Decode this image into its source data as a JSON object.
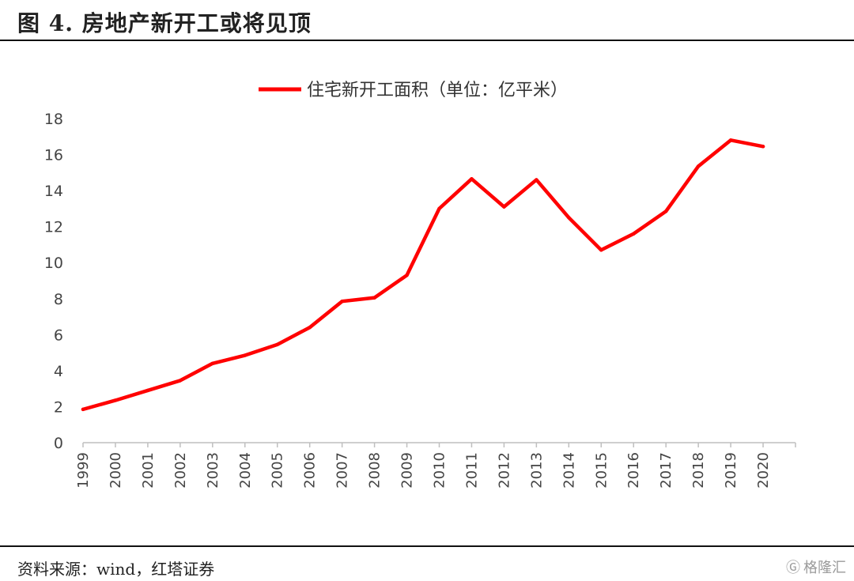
{
  "header": {
    "title": "图 4. 房地产新开工或将见顶"
  },
  "footer": {
    "source": "资料来源：wind，红塔证券",
    "watermark": "格隆汇"
  },
  "chart_data": {
    "type": "line",
    "legend_position": "top-center",
    "grid": false,
    "x": [
      "1999",
      "2000",
      "2001",
      "2002",
      "2003",
      "2004",
      "2005",
      "2006",
      "2007",
      "2008",
      "2009",
      "2010",
      "2011",
      "2012",
      "2013",
      "2014",
      "2015",
      "2016",
      "2017",
      "2018",
      "2019",
      "2020"
    ],
    "y_ticks": [
      "0",
      "2",
      "4",
      "6",
      "8",
      "10",
      "12",
      "14",
      "16",
      "18"
    ],
    "ylim": [
      0,
      18
    ],
    "series": [
      {
        "name": "住宅新开工面积（单位：亿平米）",
        "color": "#ff0000",
        "values": [
          1.85,
          2.35,
          2.9,
          3.45,
          4.4,
          4.85,
          5.45,
          6.4,
          7.85,
          8.05,
          9.3,
          13.0,
          14.65,
          13.1,
          14.6,
          12.5,
          10.7,
          11.6,
          12.85,
          15.35,
          16.8,
          16.45
        ]
      }
    ]
  }
}
